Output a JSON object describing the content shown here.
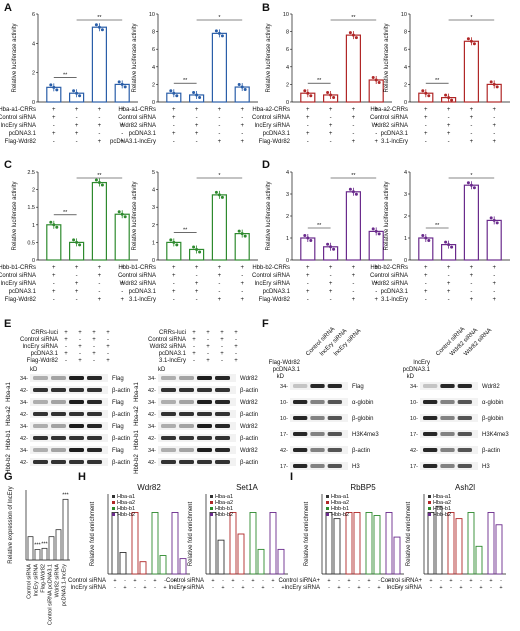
{
  "colors": {
    "A": "#2a5ea8",
    "B": "#b02727",
    "C": "#2e8a2e",
    "D": "#6a2b8c",
    "H": "#333333"
  },
  "panel_letters": [
    "A",
    "B",
    "C",
    "D",
    "E",
    "F",
    "G",
    "H",
    "I"
  ],
  "common": {
    "ylabel": "Relative luciferase activity",
    "control_sirna": "Control siRNA +",
    "pcdna31_row": "pcDNA3.1 +",
    "sig2": "**",
    "sig1": "*",
    "sig3": "***",
    "kd": "kD",
    "beta_actin": "β-actin"
  },
  "chart_data": [
    {
      "type": "bar",
      "panel": "A",
      "ylabel": "Relative luciferase activity",
      "ylim": [
        0,
        6
      ],
      "yticks": [
        0,
        2,
        4,
        6
      ],
      "values": [
        1.0,
        0.6,
        5.1,
        1.2
      ],
      "row_labels": [
        "Hba-a1-CRRs +",
        "Control siRNA +",
        "lncEry siRNA -",
        "pcDNA3.1 +",
        "Flag-Wdr82 -"
      ]
    },
    {
      "type": "bar",
      "panel": "A2",
      "ylabel": "Relative luciferase activity",
      "ylim": [
        0,
        10
      ],
      "yticks": [
        0,
        2,
        4,
        6,
        8,
        10
      ],
      "values": [
        1.0,
        0.8,
        7.8,
        1.7
      ],
      "row_labels": [
        "Hba-a1-CRRs +",
        "Control siRNA +",
        "Wdr82 siRNA -",
        "pcDNA3.1 +",
        "pcDNA3.1-lncEry -"
      ]
    },
    {
      "type": "bar",
      "panel": "B",
      "ylabel": "Relative luciferase activity",
      "ylim": [
        0,
        10
      ],
      "yticks": [
        0,
        2,
        4,
        6,
        8,
        10
      ],
      "values": [
        1.0,
        0.8,
        7.6,
        2.5
      ],
      "row_labels": [
        "Hba-a2-CRRs +",
        "Control siRNA +",
        "lncEry siRNA -",
        "pcDNA3.1 +",
        "Flag-Wdr82 -"
      ]
    },
    {
      "type": "bar",
      "panel": "B2",
      "ylabel": "Relative luciferase activity",
      "ylim": [
        0,
        10
      ],
      "yticks": [
        0,
        2,
        4,
        6,
        8,
        10
      ],
      "values": [
        1.0,
        0.5,
        6.9,
        2.0
      ],
      "row_labels": [
        "Hba-a2-CRRs +",
        "Control siRNA +",
        "Wdr82 siRNA -",
        "pcDNA3.1 +",
        "3.1-lncEry -"
      ]
    },
    {
      "type": "bar",
      "panel": "C",
      "ylabel": "Relative luciferase activity",
      "ylim": [
        0,
        2.5
      ],
      "yticks": [
        0.0,
        0.5,
        1.0,
        1.5,
        2.0,
        2.5
      ],
      "values": [
        1.0,
        0.5,
        2.2,
        1.3
      ],
      "row_labels": [
        "Hbb-b1-CRRs +",
        "Control siRNA +",
        "lncEry siRNA -",
        "pcDNA3.1 +",
        "Flag-Wdr82 -"
      ]
    },
    {
      "type": "bar",
      "panel": "C2",
      "ylabel": "Relative luciferase activity",
      "ylim": [
        0,
        5
      ],
      "yticks": [
        0,
        1,
        2,
        3,
        4,
        5
      ],
      "values": [
        1.0,
        0.6,
        3.7,
        1.5
      ],
      "row_labels": [
        "Hbb-b1-CRRs +",
        "Control siRNA +",
        "Wdr82 siRNA -",
        "pcDNA3.1 +",
        "3.1-lncEry -"
      ]
    },
    {
      "type": "bar",
      "panel": "D",
      "ylabel": "Relative luciferase activity",
      "ylim": [
        0,
        4
      ],
      "yticks": [
        0,
        1,
        2,
        3,
        4
      ],
      "values": [
        1.0,
        0.6,
        3.1,
        1.3
      ],
      "row_labels": [
        "Hbb-b2-CRRs +",
        "Control siRNA +",
        "lncEry siRNA -",
        "pcDNA3.1 +",
        "Flag-Wdr82 -"
      ]
    },
    {
      "type": "bar",
      "panel": "D2",
      "ylabel": "Relative luciferase activity",
      "ylim": [
        0,
        4
      ],
      "yticks": [
        0,
        1,
        2,
        3,
        4
      ],
      "values": [
        1.0,
        0.7,
        3.4,
        1.8
      ],
      "row_labels": [
        "Hbb-b2-CRRs +",
        "Control siRNA +",
        "Wdr82 siRNA -",
        "pcDNA3.1 +",
        "3.1-lncEry -"
      ]
    },
    {
      "type": "bar",
      "panel": "G",
      "ylabel": "Relative expression of lncEry",
      "ylim": [
        0,
        3
      ],
      "values": [
        1.0,
        0.45,
        0.5,
        1.0,
        1.3,
        2.6
      ],
      "categories": [
        "Control siRNA",
        "lncEry siRNA",
        "Flag-Wdr82",
        "Control siRNA pcDNA3.1",
        "Wdr82 siRNA",
        "pcDNA3.1-lncEry"
      ]
    },
    {
      "type": "bar",
      "panel": "H",
      "title": "Wdr82",
      "ylabel": "Relative fold enrichment",
      "series": [
        {
          "name": "Hba-a1",
          "values": [
            1.0,
            0.35
          ]
        },
        {
          "name": "Hba-a2",
          "values": [
            1.0,
            0.2
          ]
        },
        {
          "name": "Hbb-b1",
          "values": [
            1.0,
            0.3
          ]
        },
        {
          "name": "Hbb-b2",
          "values": [
            1.0,
            0.25
          ]
        }
      ]
    },
    {
      "type": "bar",
      "panel": "H2",
      "title": "Set1A",
      "ylabel": "Relative fold enrichment",
      "series": [
        {
          "name": "Hba-a1",
          "values": [
            1.0,
            0.55
          ]
        },
        {
          "name": "Hba-a2",
          "values": [
            1.0,
            0.65
          ]
        },
        {
          "name": "Hbb-b1",
          "values": [
            1.0,
            0.4
          ]
        },
        {
          "name": "Hbb-b2",
          "values": [
            1.0,
            0.4
          ]
        }
      ]
    },
    {
      "type": "bar",
      "panel": "I",
      "title": "RbBP5",
      "ylabel": "Relative fold enrichment",
      "series": [
        {
          "name": "Hba-a1",
          "values": [
            1.0,
            0.9
          ]
        },
        {
          "name": "Hba-a2",
          "values": [
            1.0,
            1.0
          ]
        },
        {
          "name": "Hbb-b1",
          "values": [
            1.0,
            0.95
          ]
        },
        {
          "name": "Hbb-b2",
          "values": [
            1.0,
            0.6
          ]
        }
      ]
    },
    {
      "type": "bar",
      "panel": "I2",
      "title": "Ash2l",
      "ylabel": "Relative fold enrichment",
      "series": [
        {
          "name": "Hba-a1",
          "values": [
            1.0,
            1.1
          ]
        },
        {
          "name": "Hba-a2",
          "values": [
            1.0,
            0.9
          ]
        },
        {
          "name": "Hbb-b1",
          "values": [
            1.0,
            0.45
          ]
        },
        {
          "name": "Hbb-b2",
          "values": [
            1.0,
            0.8
          ]
        }
      ]
    }
  ],
  "blots": {
    "E1_rows": [
      "CRRs-luci",
      "Control siRNA",
      "lncEry siRNA",
      "pcDNA3.1",
      "Flag-Wdr82"
    ],
    "E2_rows": [
      "CRRs-luci",
      "Control siRNA",
      "Wdr82 siRNA",
      "pcDNA3.1",
      "3.1-lncEry"
    ],
    "E_left_labels": [
      "Hba-a1",
      "Hba-a2",
      "Hbb-b1",
      "Hbb-b2"
    ],
    "E1_bands": [
      "Flag",
      "β-actin",
      "Flag",
      "β-actin",
      "Flag",
      "β-actin",
      "Flag",
      "β-actin"
    ],
    "E2_bands": [
      "Wdr82",
      "β-actin",
      "Wdr82",
      "β-actin",
      "Wdr82",
      "β-actin",
      "Wdr82",
      "β-actin"
    ],
    "F1_top": [
      "Control siRNA",
      "lncEry siRNA",
      "lncEry siRNA"
    ],
    "F2_top": [
      "Control siRNA",
      "Wdr82 siRNA",
      "Wdr82 siRNA"
    ],
    "F1_side": [
      "Flag-Wdr82",
      "pcDNA3.1"
    ],
    "F2_side": [
      "lncEry",
      "pcDNA3.1"
    ],
    "F1_bands": [
      "Flag",
      "α-globin",
      "β-globin",
      "H3K4me3",
      "β-actin",
      "H3"
    ],
    "F2_bands": [
      "Wdr82",
      "α-globin",
      "β-globin",
      "H3K4me3",
      "β-actin",
      "H3"
    ],
    "F_kd": [
      "34-",
      "10-",
      "10-",
      "17-",
      "42-",
      "17-"
    ]
  },
  "ip_rows": [
    "Control siRNA",
    "lncEry siRNA"
  ],
  "ip_rows_alt": [
    "Control siRNA+",
    "lncEry siRNA"
  ]
}
